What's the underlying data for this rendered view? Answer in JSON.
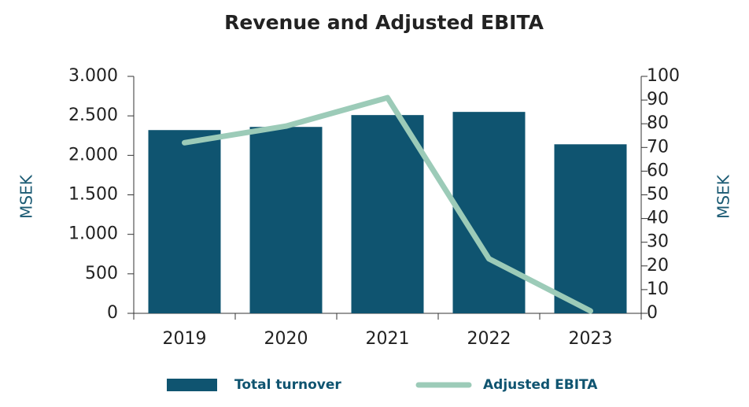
{
  "chart_data": {
    "type": "bar",
    "title": "Revenue and Adjusted EBITA",
    "categories": [
      "2019",
      "2020",
      "2021",
      "2022",
      "2023"
    ],
    "series": [
      {
        "name": "Total turnover",
        "type": "bar",
        "color": "#0f5470",
        "values": [
          2320,
          2360,
          2510,
          2550,
          2140
        ]
      },
      {
        "name": "Adjusted EBITA",
        "type": "line",
        "axis": "y2",
        "color": "#9ccbb8",
        "values": [
          72,
          79,
          91,
          23,
          1
        ]
      }
    ],
    "ylabel": "MSEK",
    "y2label": "MSEK",
    "ylim": [
      0,
      3000
    ],
    "yticks": [
      0,
      500,
      {
        "value": 1000,
        "label": "1.000"
      },
      {
        "value": 1500,
        "label": "1.500"
      },
      {
        "value": 2000,
        "label": "2.000"
      },
      {
        "value": 2500,
        "label": "2.500"
      },
      {
        "value": 3000,
        "label": "3.000"
      }
    ],
    "y2lim": [
      0,
      100
    ],
    "y2ticks": [
      0,
      10,
      20,
      30,
      40,
      50,
      60,
      70,
      80,
      90,
      100
    ],
    "grid": false,
    "legend": "bottom"
  }
}
